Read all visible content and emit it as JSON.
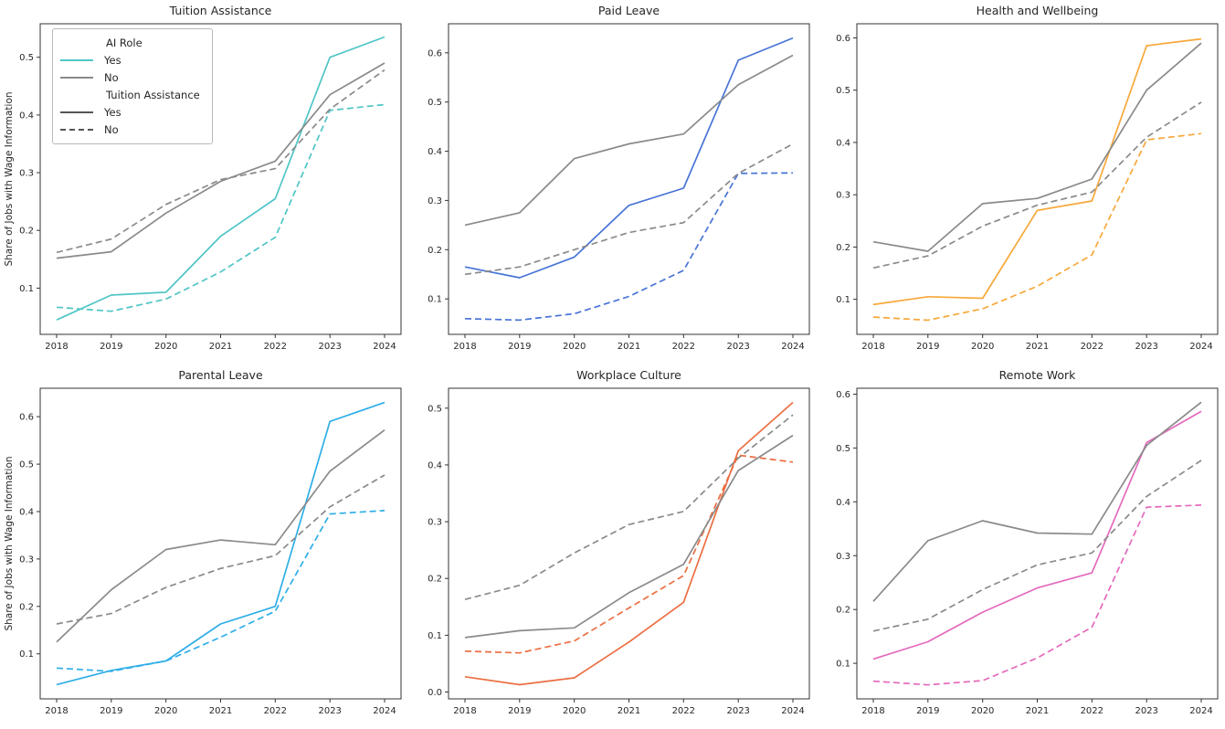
{
  "figure": {
    "background": "#ffffff",
    "ylabel": "Share of Jobs with Wage Information",
    "x_years": [
      2018,
      2019,
      2020,
      2021,
      2022,
      2023,
      2024
    ],
    "gray_color": "#8A8A8A",
    "spine_color": "#333333",
    "legend": {
      "position": "upper-left of first subplot",
      "group1_title": "AI Role",
      "group1_items": [
        {
          "label": "Yes",
          "color": "#4FC5C6",
          "style": "solid"
        },
        {
          "label": "No",
          "color": "#8A8A8A",
          "style": "solid"
        }
      ],
      "group2_title": "Tuition Assistance",
      "group2_items": [
        {
          "label": "Yes",
          "color": "#555555",
          "style": "solid"
        },
        {
          "label": "No",
          "color": "#555555",
          "style": "dashed"
        }
      ]
    }
  },
  "chart_data": [
    {
      "type": "line",
      "title": "Tuition Assistance",
      "x": [
        2018,
        2019,
        2020,
        2021,
        2022,
        2023,
        2024
      ],
      "ylim": [
        0.02,
        0.558
      ],
      "yticks": [
        0.1,
        0.2,
        0.3,
        0.4,
        0.5
      ],
      "grid": false,
      "accent_color": "#4FC5C6",
      "series": [
        {
          "name": "AI Role Yes / Benefit Yes",
          "color": "accent",
          "dash": false,
          "values": [
            0.045,
            0.088,
            0.093,
            0.19,
            0.255,
            0.5,
            0.535
          ]
        },
        {
          "name": "AI Role Yes / Benefit No",
          "color": "accent",
          "dash": true,
          "values": [
            0.067,
            0.06,
            0.081,
            0.128,
            0.188,
            0.408,
            0.418
          ]
        },
        {
          "name": "AI Role No / Benefit Yes",
          "color": "gray",
          "dash": false,
          "values": [
            0.152,
            0.163,
            0.23,
            0.285,
            0.32,
            0.435,
            0.49
          ]
        },
        {
          "name": "AI Role No / Benefit No",
          "color": "gray",
          "dash": true,
          "values": [
            0.162,
            0.185,
            0.245,
            0.288,
            0.307,
            0.41,
            0.478
          ]
        }
      ]
    },
    {
      "type": "line",
      "title": "Paid Leave",
      "x": [
        2018,
        2019,
        2020,
        2021,
        2022,
        2023,
        2024
      ],
      "ylim": [
        0.028,
        0.659
      ],
      "yticks": [
        0.1,
        0.2,
        0.3,
        0.4,
        0.5,
        0.6
      ],
      "grid": false,
      "accent_color": "#4874D6",
      "series": [
        {
          "name": "AI Role Yes / Benefit Yes",
          "color": "accent",
          "dash": false,
          "values": [
            0.165,
            0.143,
            0.185,
            0.29,
            0.325,
            0.585,
            0.63
          ]
        },
        {
          "name": "AI Role Yes / Benefit No",
          "color": "accent",
          "dash": true,
          "values": [
            0.06,
            0.057,
            0.07,
            0.105,
            0.158,
            0.355,
            0.356
          ]
        },
        {
          "name": "AI Role No / Benefit Yes",
          "color": "gray",
          "dash": false,
          "values": [
            0.25,
            0.275,
            0.385,
            0.415,
            0.435,
            0.535,
            0.595
          ]
        },
        {
          "name": "AI Role No / Benefit No",
          "color": "gray",
          "dash": true,
          "values": [
            0.15,
            0.165,
            0.2,
            0.235,
            0.255,
            0.355,
            0.415
          ]
        }
      ]
    },
    {
      "type": "line",
      "title": "Health and Wellbeing",
      "x": [
        2018,
        2019,
        2020,
        2021,
        2022,
        2023,
        2024
      ],
      "ylim": [
        0.033,
        0.627
      ],
      "yticks": [
        0.1,
        0.2,
        0.3,
        0.4,
        0.5,
        0.6
      ],
      "grid": false,
      "accent_color": "#F7A83B",
      "series": [
        {
          "name": "AI Role Yes / Benefit Yes",
          "color": "accent",
          "dash": false,
          "values": [
            0.09,
            0.105,
            0.102,
            0.27,
            0.288,
            0.585,
            0.598
          ]
        },
        {
          "name": "AI Role Yes / Benefit No",
          "color": "accent",
          "dash": true,
          "values": [
            0.066,
            0.06,
            0.082,
            0.125,
            0.185,
            0.405,
            0.417
          ]
        },
        {
          "name": "AI Role No / Benefit Yes",
          "color": "gray",
          "dash": false,
          "values": [
            0.21,
            0.192,
            0.283,
            0.293,
            0.33,
            0.5,
            0.59
          ]
        },
        {
          "name": "AI Role No / Benefit No",
          "color": "gray",
          "dash": true,
          "values": [
            0.16,
            0.183,
            0.24,
            0.28,
            0.305,
            0.41,
            0.477
          ]
        }
      ]
    },
    {
      "type": "line",
      "title": "Parental Leave",
      "x": [
        2018,
        2019,
        2020,
        2021,
        2022,
        2023,
        2024
      ],
      "ylim": [
        0.005,
        0.66
      ],
      "yticks": [
        0.1,
        0.2,
        0.3,
        0.4,
        0.5,
        0.6
      ],
      "grid": false,
      "accent_color": "#2FAEE8",
      "series": [
        {
          "name": "AI Role Yes / Benefit Yes",
          "color": "accent",
          "dash": false,
          "values": [
            0.035,
            0.065,
            0.085,
            0.163,
            0.2,
            0.59,
            0.63
          ]
        },
        {
          "name": "AI Role Yes / Benefit No",
          "color": "accent",
          "dash": true,
          "values": [
            0.07,
            0.063,
            0.085,
            0.135,
            0.19,
            0.395,
            0.402
          ]
        },
        {
          "name": "AI Role No / Benefit Yes",
          "color": "gray",
          "dash": false,
          "values": [
            0.125,
            0.235,
            0.32,
            0.34,
            0.33,
            0.485,
            0.572
          ]
        },
        {
          "name": "AI Role No / Benefit No",
          "color": "gray",
          "dash": true,
          "values": [
            0.163,
            0.185,
            0.24,
            0.28,
            0.307,
            0.41,
            0.477
          ]
        }
      ]
    },
    {
      "type": "line",
      "title": "Workplace Culture",
      "x": [
        2018,
        2019,
        2020,
        2021,
        2022,
        2023,
        2024
      ],
      "ylim": [
        -0.012,
        0.535
      ],
      "yticks": [
        0.0,
        0.1,
        0.2,
        0.3,
        0.4,
        0.5
      ],
      "grid": false,
      "accent_color": "#EC6E42",
      "series": [
        {
          "name": "AI Role Yes / Benefit Yes",
          "color": "accent",
          "dash": false,
          "values": [
            0.027,
            0.013,
            0.025,
            0.088,
            0.158,
            0.425,
            0.51
          ]
        },
        {
          "name": "AI Role Yes / Benefit No",
          "color": "accent",
          "dash": true,
          "values": [
            0.072,
            0.069,
            0.09,
            0.148,
            0.205,
            0.417,
            0.405
          ]
        },
        {
          "name": "AI Role No / Benefit Yes",
          "color": "gray",
          "dash": false,
          "values": [
            0.096,
            0.108,
            0.113,
            0.175,
            0.225,
            0.39,
            0.452
          ]
        },
        {
          "name": "AI Role No / Benefit No",
          "color": "gray",
          "dash": true,
          "values": [
            0.163,
            0.188,
            0.245,
            0.295,
            0.318,
            0.412,
            0.488
          ]
        }
      ]
    },
    {
      "type": "line",
      "title": "Remote Work",
      "x": [
        2018,
        2019,
        2020,
        2021,
        2022,
        2023,
        2024
      ],
      "ylim": [
        0.034,
        0.611
      ],
      "yticks": [
        0.1,
        0.2,
        0.3,
        0.4,
        0.5,
        0.6
      ],
      "grid": false,
      "accent_color": "#E469BD",
      "series": [
        {
          "name": "AI Role Yes / Benefit Yes",
          "color": "accent",
          "dash": false,
          "values": [
            0.108,
            0.14,
            0.195,
            0.24,
            0.268,
            0.51,
            0.568
          ]
        },
        {
          "name": "AI Role Yes / Benefit No",
          "color": "accent",
          "dash": true,
          "values": [
            0.067,
            0.06,
            0.068,
            0.11,
            0.167,
            0.39,
            0.394
          ]
        },
        {
          "name": "AI Role No / Benefit Yes",
          "color": "gray",
          "dash": false,
          "values": [
            0.215,
            0.328,
            0.365,
            0.342,
            0.34,
            0.505,
            0.585
          ]
        },
        {
          "name": "AI Role No / Benefit No",
          "color": "gray",
          "dash": true,
          "values": [
            0.16,
            0.182,
            0.237,
            0.283,
            0.305,
            0.41,
            0.477
          ]
        }
      ]
    }
  ]
}
